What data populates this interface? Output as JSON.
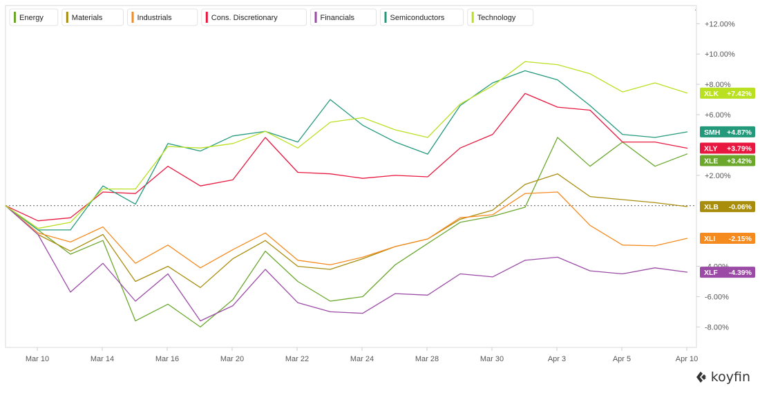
{
  "brand": {
    "name": "koyfin",
    "icon": "koyfin-logo-icon"
  },
  "chart_data": {
    "type": "line",
    "title": "",
    "xlabel": "",
    "ylabel": "",
    "x_ticks": [
      "Mar 10",
      "Mar 14",
      "Mar 16",
      "Mar 20",
      "Mar 22",
      "Mar 24",
      "Mar 28",
      "Mar 30",
      "Apr 3",
      "Apr 5",
      "Apr 10"
    ],
    "y_ticks": [
      "+12.00%",
      "+10.00%",
      "+8.00%",
      "+6.00%",
      "+2.00%",
      "-4.00%",
      "-6.00%",
      "-8.00%"
    ],
    "ylim": [
      -9.35,
      13.2
    ],
    "baseline": 0,
    "legend_position": "top-left",
    "grid": false,
    "series": [
      {
        "name": "Energy",
        "ticker": "XLE",
        "last_label": "+3.42%",
        "color": "#6aa72b",
        "values": [
          0,
          -1.6,
          -3.2,
          -2.3,
          -7.6,
          -6.5,
          -8.0,
          -6.2,
          -3.0,
          -5.0,
          -6.3,
          -6.0,
          -3.9,
          -2.5,
          -1.1,
          -0.7,
          -0.1,
          4.5,
          2.6,
          4.2,
          2.6,
          3.42
        ]
      },
      {
        "name": "Materials",
        "ticker": "XLB",
        "last_label": "-0.06%",
        "color": "#a88d0c",
        "values": [
          0,
          -1.9,
          -3.0,
          -1.9,
          -5.0,
          -4.0,
          -5.4,
          -3.5,
          -2.3,
          -4.0,
          -4.2,
          -3.5,
          -2.7,
          -2.2,
          -0.9,
          -0.3,
          1.4,
          2.1,
          0.6,
          0.4,
          0.2,
          -0.06
        ]
      },
      {
        "name": "Industrials",
        "ticker": "XLI",
        "last_label": "-2.15%",
        "color": "#f58a1f",
        "values": [
          0,
          -1.8,
          -2.4,
          -1.4,
          -3.8,
          -2.6,
          -4.1,
          -2.9,
          -1.8,
          -3.6,
          -3.9,
          -3.4,
          -2.7,
          -2.2,
          -0.8,
          -0.6,
          0.8,
          0.9,
          -1.3,
          -2.6,
          -2.65,
          -2.15
        ]
      },
      {
        "name": "Cons. Discretionary",
        "ticker": "XLY",
        "last_label": "+3.79%",
        "color": "#e8173f",
        "values": [
          0,
          -1.0,
          -0.8,
          0.9,
          0.8,
          2.6,
          1.3,
          1.7,
          4.5,
          2.2,
          2.1,
          1.8,
          2.0,
          1.9,
          3.8,
          4.7,
          7.4,
          6.5,
          6.3,
          4.2,
          4.2,
          3.79
        ]
      },
      {
        "name": "Financials",
        "ticker": "XLF",
        "last_label": "-4.39%",
        "color": "#9b4ba6",
        "values": [
          0,
          -1.9,
          -5.7,
          -3.8,
          -6.3,
          -4.5,
          -7.6,
          -6.6,
          -4.2,
          -6.4,
          -7.0,
          -7.1,
          -5.8,
          -5.9,
          -4.5,
          -4.7,
          -3.6,
          -3.4,
          -4.3,
          -4.5,
          -4.1,
          -4.39
        ]
      },
      {
        "name": "Semiconductors",
        "ticker": "SMH",
        "last_label": "+4.87%",
        "color": "#23997b",
        "values": [
          0,
          -1.6,
          -1.6,
          1.3,
          0.1,
          4.1,
          3.6,
          4.6,
          4.9,
          4.2,
          7.0,
          5.3,
          4.2,
          3.4,
          6.6,
          8.1,
          8.9,
          8.3,
          6.6,
          4.7,
          4.5,
          4.87
        ]
      },
      {
        "name": "Technology",
        "ticker": "XLK",
        "last_label": "+7.42%",
        "color": "#b9e021",
        "values": [
          0,
          -1.5,
          -1.1,
          1.1,
          1.1,
          3.9,
          3.8,
          4.1,
          4.9,
          3.8,
          5.5,
          5.8,
          5.0,
          4.5,
          6.7,
          7.9,
          9.5,
          9.3,
          8.7,
          7.5,
          8.1,
          7.42
        ]
      }
    ]
  }
}
